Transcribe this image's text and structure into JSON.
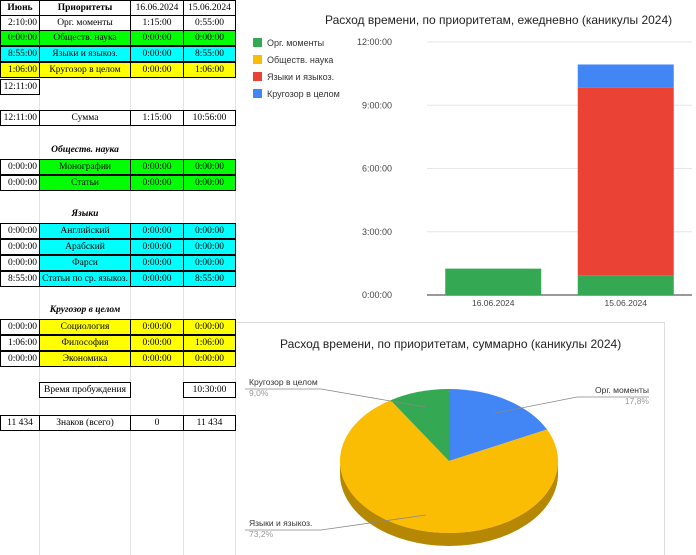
{
  "sheet": {
    "header": {
      "col1": "Июнь",
      "col2": "Приоритеты",
      "col3": "16.06.2024",
      "col4": "15.06.2024"
    },
    "top_rows": [
      {
        "a": "2:10:00",
        "label": "Орг. моменты",
        "c": "1:15:00",
        "d": "0:55:00",
        "color": "none"
      },
      {
        "a": "0:00:00",
        "label": "Обществ. наука",
        "c": "0:00:00",
        "d": "0:00:00",
        "color": "green"
      },
      {
        "a": "8:55:00",
        "label": "Языки и языкоз.",
        "c": "0:00:00",
        "d": "8:55:00",
        "color": "cyan"
      },
      {
        "a": "1:06:00",
        "label": "Кругозор в целом",
        "c": "0:00:00",
        "d": "1:06:00",
        "color": "yellow"
      }
    ],
    "total_a": "12:11:00",
    "sum_row": {
      "a": "12:11:00",
      "label": "Сумма",
      "c": "1:15:00",
      "d": "10:56:00"
    },
    "section_social": {
      "title": "Обществ. наука",
      "rows": [
        {
          "a": "0:00:00",
          "label": "Монографии",
          "c": "0:00:00",
          "d": "0:00:00"
        },
        {
          "a": "0:00:00",
          "label": "Статьи",
          "c": "0:00:00",
          "d": "0:00:00"
        }
      ]
    },
    "section_lang": {
      "title": "Языки",
      "rows": [
        {
          "a": "0:00:00",
          "label": "Английский",
          "c": "0:00:00",
          "d": "0:00:00"
        },
        {
          "a": "0:00:00",
          "label": "Арабский",
          "c": "0:00:00",
          "d": "0:00:00"
        },
        {
          "a": "0:00:00",
          "label": "Фарси",
          "c": "0:00:00",
          "d": "0:00:00"
        },
        {
          "a": "8:55:00",
          "label": "Статьи по ср. языкоз.",
          "c": "0:00:00",
          "d": "8:55:00"
        }
      ]
    },
    "section_outlook": {
      "title": "Кругозор в целом",
      "rows": [
        {
          "a": "0:00:00",
          "label": "Социология",
          "c": "0:00:00",
          "d": "0:00:00"
        },
        {
          "a": "1:06:00",
          "label": "Философия",
          "c": "0:00:00",
          "d": "1:06:00"
        },
        {
          "a": "0:00:00",
          "label": "Экономика",
          "c": "0:00:00",
          "d": "0:00:00"
        }
      ]
    },
    "wakeup": {
      "label": "Время пробуждения",
      "value": "10:30:00"
    },
    "chars": {
      "a": "11 434",
      "label": "Знаков (всего)",
      "c": "0",
      "d": "11 434"
    }
  },
  "colors": {
    "org": "#34a853",
    "social": "#fbbc04",
    "lang": "#ea4335",
    "outlook": "#4285f4",
    "cell_green": "#00ff00",
    "cell_cyan": "#00ffff",
    "cell_yellow": "#ffff00"
  },
  "chart_data": [
    {
      "type": "bar",
      "stacked": true,
      "title": "Расход времени, по приоритетам, ежедневно (каникулы 2024)",
      "categories": [
        "16.06.2024",
        "15.06.2024"
      ],
      "y_unit": "hours",
      "y_ticks": [
        "0:00:00",
        "3:00:00",
        "6:00:00",
        "9:00:00",
        "12:00:00"
      ],
      "ylim": [
        0,
        12
      ],
      "legend_position": "left",
      "series": [
        {
          "name": "Орг. моменты",
          "values": [
            1.25,
            0.9167
          ],
          "color": "#34a853"
        },
        {
          "name": "Обществ. наука",
          "values": [
            0,
            0
          ],
          "color": "#fbbc04"
        },
        {
          "name": "Языки и языкоз.",
          "values": [
            0,
            8.9167
          ],
          "color": "#ea4335"
        },
        {
          "name": "Кругозор в целом",
          "values": [
            0,
            1.1
          ],
          "color": "#4285f4"
        }
      ]
    },
    {
      "type": "pie",
      "title": "Расход времени, по приоритетам, суммарно (каникулы 2024)",
      "slices": [
        {
          "label": "Орг. моменты",
          "value": 17.8,
          "pct_label": "17,8%",
          "color": "#4285f4"
        },
        {
          "label": "Языки и языкоз.",
          "value": 73.2,
          "pct_label": "73,2%",
          "color": "#fbbc04"
        },
        {
          "label": "Кругозор в целом",
          "value": 9.0,
          "pct_label": "9,0%",
          "color": "#34a853"
        }
      ]
    }
  ]
}
